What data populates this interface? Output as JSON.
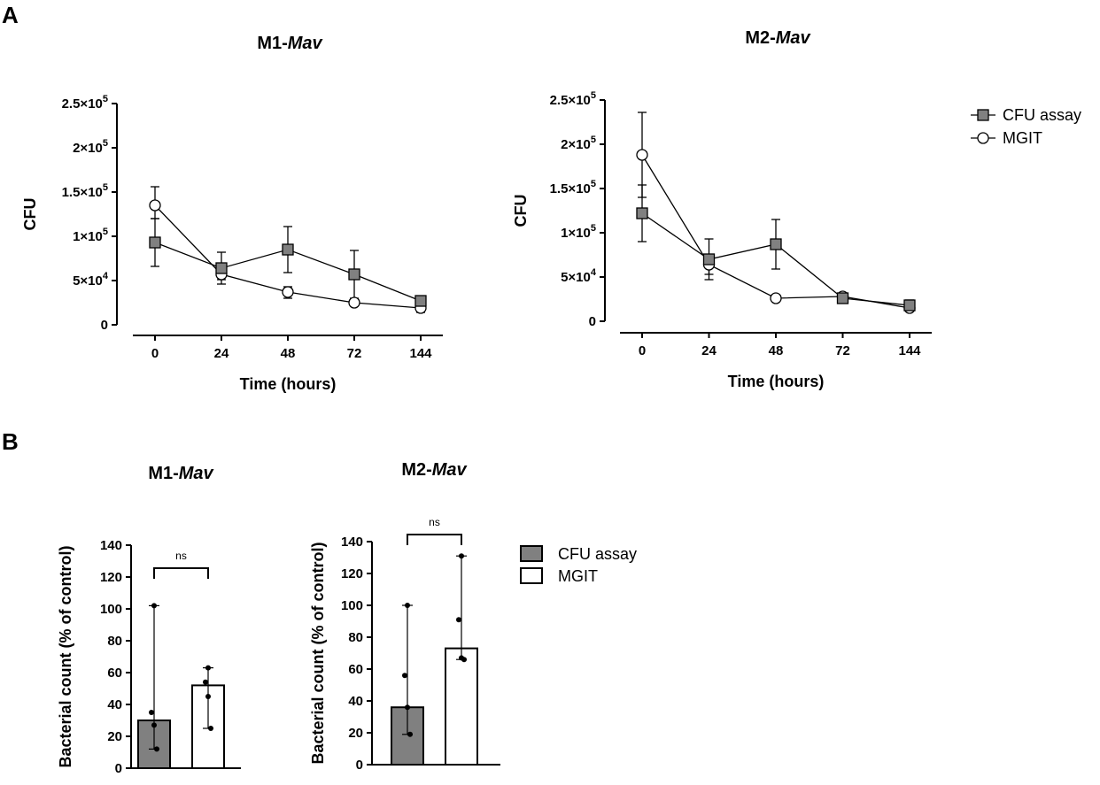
{
  "panels": {
    "a_label": "A",
    "b_label": "B"
  },
  "chart_data": [
    {
      "id": "A-M1",
      "type": "line",
      "title": "M1-",
      "title_italic": "Mav",
      "xlabel": "Time (hours)",
      "ylabel": "CFU",
      "categories": [
        "0",
        "24",
        "48",
        "72",
        "144"
      ],
      "ylim": [
        0,
        250000
      ],
      "yticks": [
        {
          "value": 0,
          "base": "0",
          "exp": ""
        },
        {
          "value": 50000,
          "base": "5×10",
          "exp": "4"
        },
        {
          "value": 100000,
          "base": "1×10",
          "exp": "5"
        },
        {
          "value": 150000,
          "base": "1.5×10",
          "exp": "5"
        },
        {
          "value": 200000,
          "base": "2×10",
          "exp": "5"
        },
        {
          "value": 250000,
          "base": "2.5×10",
          "exp": "5"
        }
      ],
      "series": [
        {
          "name": "CFU assay",
          "marker": "square",
          "color": "#808080",
          "values": [
            93000,
            64000,
            85000,
            57000,
            27000
          ],
          "err_low": [
            27000,
            18000,
            26000,
            27000,
            5000
          ],
          "err_high": [
            27000,
            18000,
            26000,
            27000,
            3000
          ]
        },
        {
          "name": "MGIT",
          "marker": "circle",
          "color": "#ffffff",
          "values": [
            135000,
            57000,
            37000,
            25000,
            19000
          ],
          "err_low": [
            15000,
            6000,
            7000,
            3000,
            5000
          ],
          "err_high": [
            21000,
            6000,
            6000,
            3000,
            4000
          ]
        }
      ]
    },
    {
      "id": "A-M2",
      "type": "line",
      "title": "M2-",
      "title_italic": "Mav",
      "xlabel": "Time (hours)",
      "ylabel": "CFU",
      "categories": [
        "0",
        "24",
        "48",
        "72",
        "144"
      ],
      "ylim": [
        0,
        250000
      ],
      "yticks": [
        {
          "value": 0,
          "base": "0",
          "exp": ""
        },
        {
          "value": 50000,
          "base": "5×10",
          "exp": "4"
        },
        {
          "value": 100000,
          "base": "1×10",
          "exp": "5"
        },
        {
          "value": 150000,
          "base": "1.5×10",
          "exp": "5"
        },
        {
          "value": 200000,
          "base": "2×10",
          "exp": "5"
        },
        {
          "value": 250000,
          "base": "2.5×10",
          "exp": "5"
        }
      ],
      "series": [
        {
          "name": "CFU assay",
          "marker": "square",
          "color": "#808080",
          "values": [
            122000,
            70000,
            87000,
            26000,
            18000
          ],
          "err_low": [
            32000,
            23000,
            28000,
            3000,
            6000
          ],
          "err_high": [
            32000,
            23000,
            28000,
            3000,
            6000
          ]
        },
        {
          "name": "MGIT",
          "marker": "circle",
          "color": "#ffffff",
          "values": [
            188000,
            64000,
            26000,
            28000,
            15000
          ],
          "err_low": [
            48000,
            11000,
            2000,
            2000,
            3000
          ],
          "err_high": [
            48000,
            11000,
            2000,
            2000,
            3000
          ]
        }
      ],
      "legend": [
        "CFU assay",
        "MGIT"
      ]
    },
    {
      "id": "B-M1",
      "type": "bar",
      "title": "M1-",
      "title_italic": "Mav",
      "xlabel": "",
      "ylabel": "Bacterial count (% of control)",
      "ylim": [
        0,
        140
      ],
      "yticks": [
        0,
        20,
        40,
        60,
        80,
        100,
        120,
        140
      ],
      "bars": [
        {
          "name": "CFU assay",
          "color": "#808080",
          "value": 30,
          "range": [
            12,
            102
          ],
          "points": [
            102,
            35,
            27,
            12
          ]
        },
        {
          "name": "MGIT",
          "color": "#ffffff",
          "value": 52,
          "range": [
            25,
            63
          ],
          "points": [
            63,
            54,
            45,
            25
          ]
        }
      ],
      "annotation": "ns"
    },
    {
      "id": "B-M2",
      "type": "bar",
      "title": "M2-",
      "title_italic": "Mav",
      "xlabel": "",
      "ylabel": "Bacterial count (% of control)",
      "ylim": [
        0,
        140
      ],
      "yticks": [
        0,
        20,
        40,
        60,
        80,
        100,
        120,
        140
      ],
      "bars": [
        {
          "name": "CFU assay",
          "color": "#808080",
          "value": 36,
          "range": [
            19,
            100
          ],
          "points": [
            100,
            56,
            36,
            19
          ]
        },
        {
          "name": "MGIT",
          "color": "#ffffff",
          "value": 73,
          "range": [
            66,
            131
          ],
          "points": [
            131,
            91,
            67,
            66
          ]
        }
      ],
      "annotation": "ns",
      "legend": [
        "CFU assay",
        "MGIT"
      ]
    }
  ]
}
